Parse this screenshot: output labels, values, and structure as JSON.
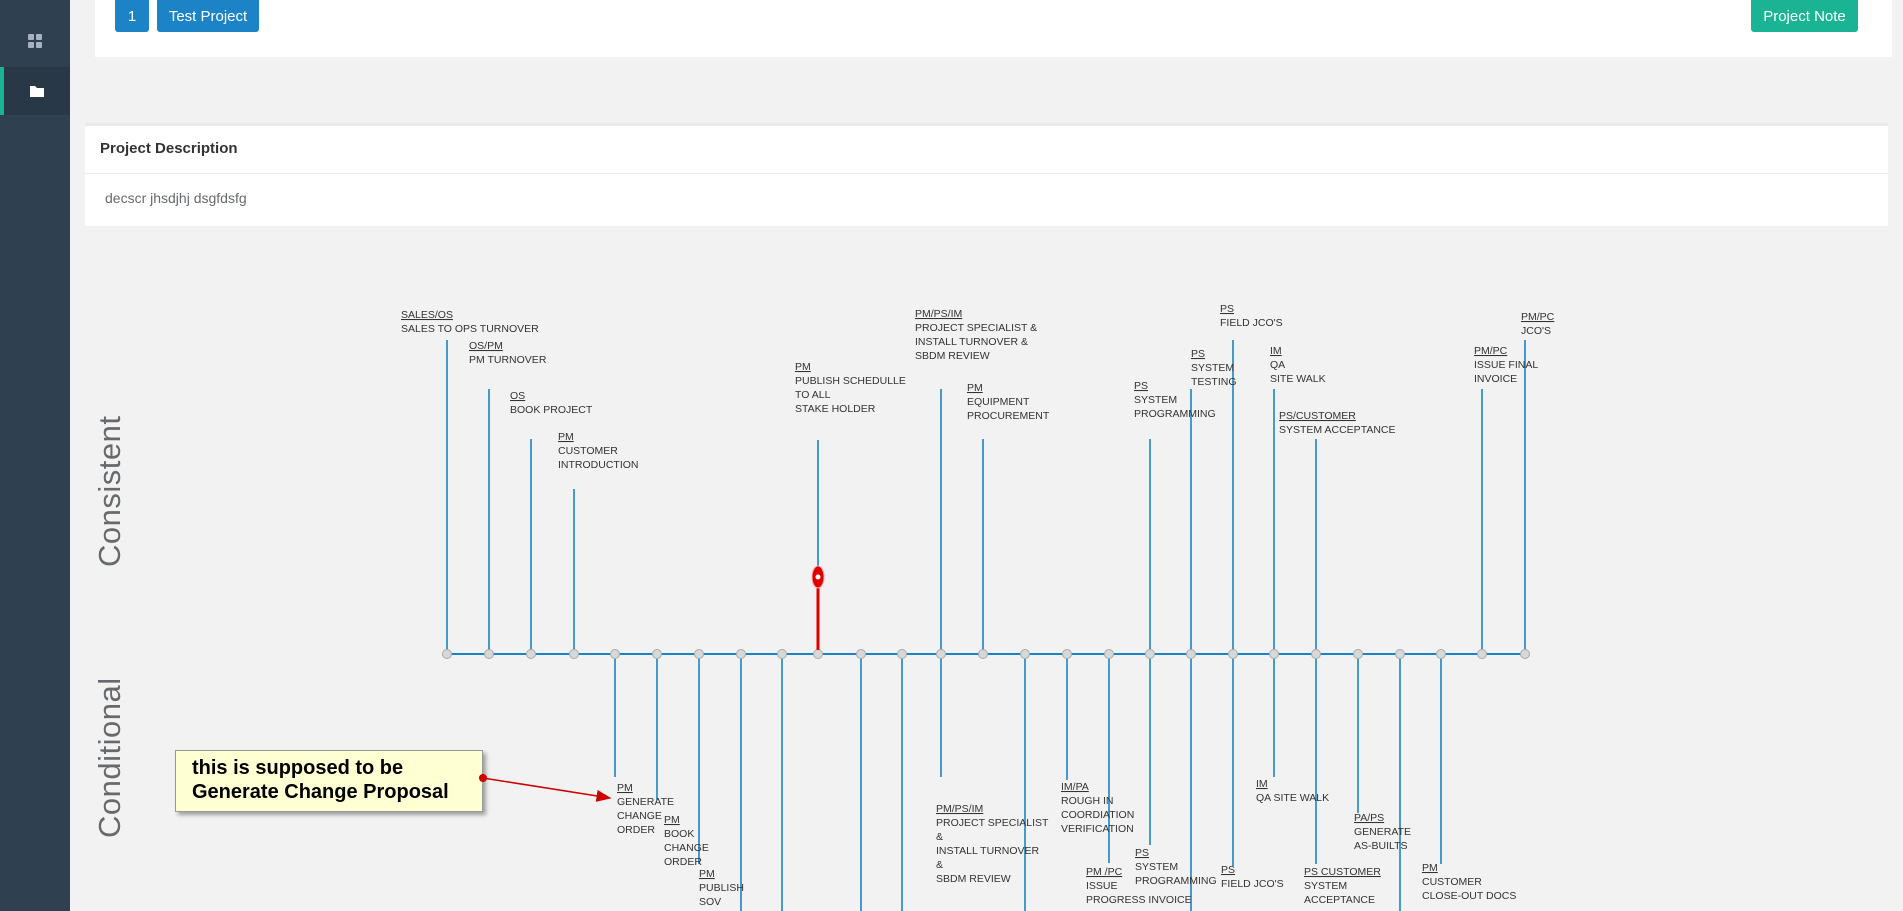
{
  "sidebar": {
    "items": [
      {
        "icon": "dashboard-grid-icon",
        "active": false
      },
      {
        "icon": "folder-icon",
        "active": true
      }
    ],
    "accent": "#1ab394"
  },
  "header": {
    "project_number": "1",
    "project_name": "Test Project",
    "project_note_label": "Project Note"
  },
  "description": {
    "title": "Project Description",
    "text": "decscr jhsdjhj dsgfdsfg"
  },
  "lanes": {
    "top": "Consistent",
    "bottom": "Conditional"
  },
  "annotation": {
    "line1": "this is supposed to be",
    "line2": "Generate Change Proposal"
  },
  "timeline": {
    "line_color": "#1c84c6",
    "marker_color": "#e00000",
    "top_tasks": [
      {
        "role": "SALES/OS",
        "lines": [
          "SALES TO OPS TURNOVER"
        ]
      },
      {
        "role": "OS/PM",
        "lines": [
          "PM TURNOVER"
        ]
      },
      {
        "role": "OS",
        "lines": [
          "BOOK PROJECT"
        ]
      },
      {
        "role": "PM",
        "lines": [
          "CUSTOMER",
          "INTRODUCTION"
        ]
      },
      {
        "role": "PM",
        "lines": [
          "PUBLISH SCHEDULLE",
          "TO ALL",
          "STAKE HOLDER"
        ]
      },
      {
        "role": "PM/PS/IM",
        "lines": [
          "PROJECT SPECIALIST &",
          "INSTALL TURNOVER &",
          "SBDM REVIEW"
        ]
      },
      {
        "role": "PM",
        "lines": [
          "EQUIPMENT",
          "PROCUREMENT"
        ]
      },
      {
        "role": "PS",
        "lines": [
          "SYSTEM",
          "PROGRAMMING"
        ]
      },
      {
        "role": "PS",
        "lines": [
          "SYSTEM",
          "TESTING"
        ]
      },
      {
        "role": "PS",
        "lines": [
          "FIELD JCO'S"
        ]
      },
      {
        "role": "IM",
        "lines": [
          "QA",
          "SITE WALK"
        ]
      },
      {
        "role": "PS/CUSTOMER",
        "lines": [
          "SYSTEM ACCEPTANCE"
        ]
      },
      {
        "role": "PM/PC",
        "lines": [
          "ISSUE FINAL",
          "INVOICE"
        ]
      },
      {
        "role": "PM/PC",
        "lines": [
          "JCO'S"
        ]
      }
    ],
    "bottom_tasks": [
      {
        "role": "PM",
        "lines": [
          "GENERATE",
          "CHANGE",
          "ORDER"
        ]
      },
      {
        "role": "PM",
        "lines": [
          "BOOK",
          "CHANGE",
          "ORDER"
        ]
      },
      {
        "role": "PM",
        "lines": [
          "PUBLISH",
          "SOV"
        ]
      },
      {
        "role": "PM/PS/IM",
        "lines": [
          "PROJECT SPECIALIST",
          "&",
          "INSTALL TURNOVER",
          "&",
          "SBDM REVIEW"
        ]
      },
      {
        "role": "IM/PA",
        "lines": [
          "ROUGH IN",
          "COORDIATION",
          "VERIFICATION"
        ]
      },
      {
        "role": "PM /PC",
        "lines": [
          "ISSUE",
          "PROGRESS INVOICE"
        ]
      },
      {
        "role": "PS",
        "lines": [
          "SYSTEM",
          "PROGRAMMING"
        ]
      },
      {
        "role": "PS",
        "lines": [
          "FIELD JCO'S"
        ]
      },
      {
        "role": "IM",
        "lines": [
          "QA SITE WALK"
        ]
      },
      {
        "role": "PS CUSTOMER",
        "lines": [
          "SYSTEM",
          "ACCEPTANCE"
        ]
      },
      {
        "role": "PA/PS",
        "lines": [
          "GENERATE",
          "AS-BUILTS"
        ]
      },
      {
        "role": "PM",
        "lines": [
          "CUSTOMER",
          "CLOSE-OUT DOCS"
        ]
      }
    ]
  }
}
